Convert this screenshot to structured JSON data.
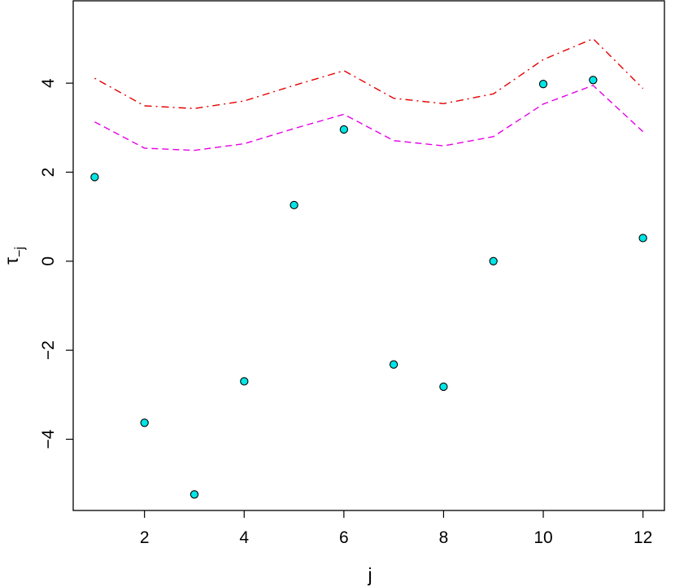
{
  "chart_data": {
    "type": "scatter",
    "title": "",
    "xlabel": "j",
    "ylabel": {
      "main": "τ",
      "subscript": "−j"
    },
    "xlim": [
      0.57,
      12.43
    ],
    "ylim": [
      -5.6,
      5.85
    ],
    "x_ticks": [
      2,
      4,
      6,
      8,
      10,
      12
    ],
    "x_tick_labels": [
      "2",
      "4",
      "6",
      "8",
      "10",
      "12"
    ],
    "y_ticks": [
      -4,
      -2,
      0,
      2,
      4
    ],
    "y_tick_labels": [
      "−4",
      "−2",
      "0",
      "2",
      "4"
    ],
    "grid": false,
    "legend": "none",
    "points": {
      "x": [
        1,
        2,
        3,
        4,
        5,
        6,
        7,
        8,
        9,
        10,
        11,
        12
      ],
      "y": [
        1.89,
        -3.63,
        -5.24,
        -2.7,
        1.26,
        2.96,
        -2.32,
        -2.82,
        0.0,
        3.98,
        4.07,
        0.52
      ],
      "fill": "#00e5e5",
      "stroke": "#000000"
    },
    "lines": [
      {
        "style": "dashed",
        "color": "#e600e6",
        "x": [
          1,
          2,
          3,
          4,
          5,
          6,
          7,
          8,
          9,
          10,
          11,
          12
        ],
        "y": [
          3.13,
          2.54,
          2.49,
          2.64,
          2.98,
          3.3,
          2.71,
          2.59,
          2.8,
          3.53,
          3.95,
          2.91
        ]
      },
      {
        "style": "dotdash",
        "color": "#e60000",
        "x": [
          1,
          2,
          3,
          4,
          5,
          6,
          7,
          8,
          9,
          10,
          11,
          12
        ],
        "y": [
          4.11,
          3.49,
          3.43,
          3.6,
          3.95,
          4.28,
          3.66,
          3.54,
          3.76,
          4.53,
          5.0,
          3.88
        ]
      }
    ]
  }
}
